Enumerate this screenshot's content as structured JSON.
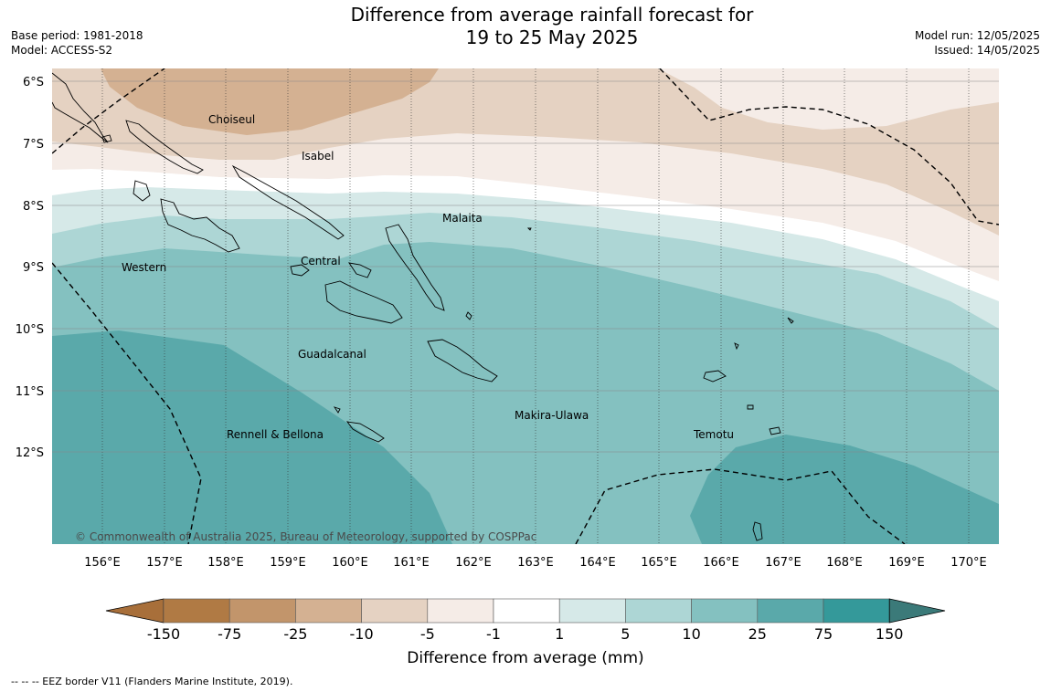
{
  "title": {
    "line1": "Difference from average rainfall forecast for",
    "line2": "19 to 25 May 2025"
  },
  "meta": {
    "base_period": "Base period: 1981-2018",
    "model": "Model: ACCESS-S2",
    "model_run": "Model run: 12/05/2025",
    "issued": "Issued: 14/05/2025"
  },
  "map": {
    "lat_labels": [
      "6°S",
      "7°S",
      "8°S",
      "9°S",
      "10°S",
      "11°S",
      "12°S"
    ],
    "lon_labels": [
      "156°E",
      "157°E",
      "158°E",
      "159°E",
      "160°E",
      "161°E",
      "162°E",
      "163°E",
      "164°E",
      "165°E",
      "166°E",
      "167°E",
      "168°E",
      "169°E",
      "170°E"
    ],
    "provinces": [
      "Choiseul",
      "Isabel",
      "Malaita",
      "Central",
      "Western",
      "Guadalcanal",
      "Makira-Ulawa",
      "Temotu",
      "Rennell & Bellona"
    ],
    "copyright": "© Commonwealth of Australia 2025, Bureau of Meteorology, supported by COSPPac"
  },
  "legend": {
    "title": "Difference from average (mm)",
    "ticks": [
      "-150",
      "-75",
      "-25",
      "-10",
      "-5",
      "-1",
      "1",
      "5",
      "10",
      "25",
      "75",
      "150"
    ],
    "colors": [
      "#a86f3a",
      "#b07a44",
      "#c2956b",
      "#d4b192",
      "#e5d2c2",
      "#f5ece7",
      "#ffffff",
      "#d6e9e8",
      "#add6d5",
      "#84c1c0",
      "#5aa9aa",
      "#34999a",
      "#3b7a79"
    ]
  },
  "footer": "--  --  -- EEZ border V11 (Flanders Marine Institute, 2019)."
}
